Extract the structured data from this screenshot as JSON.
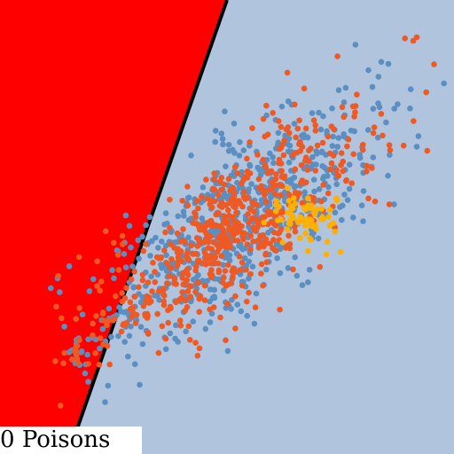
{
  "game": {
    "poison_count": "0",
    "poison_label": "Poisons"
  },
  "colors": {
    "background": "#b0c4de",
    "boundary_region": "#ff0000",
    "boundary_line": "#000000",
    "class_blue": "#5b8fc2",
    "class_orange": "#ef5a24",
    "class_poison": "#ffb000"
  },
  "icons": {
    "point_marker": "filled-circle"
  }
}
